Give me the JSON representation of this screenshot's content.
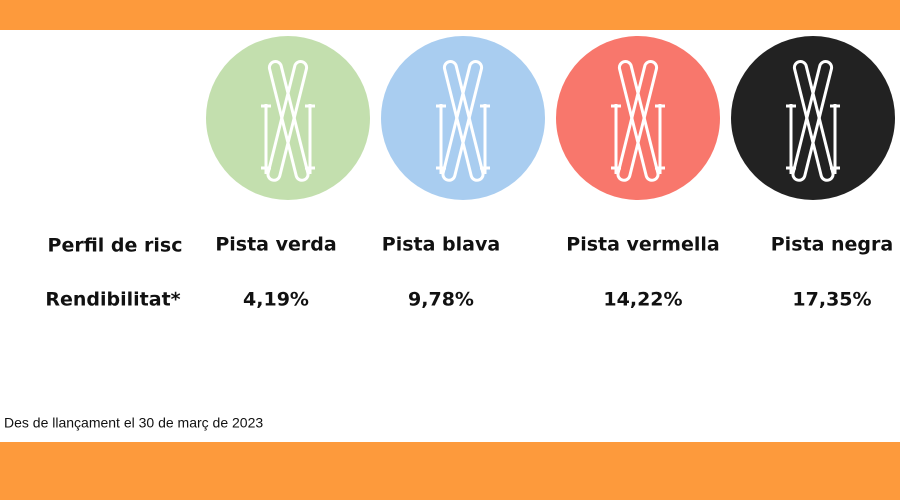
{
  "table": {
    "row_headers": [
      "Perfil de risc",
      "Rendibilitat*"
    ],
    "columns": [
      {
        "label": "Pista verda",
        "value": "4,19%",
        "color": "#c3dfae"
      },
      {
        "label": "Pista blava",
        "value": "9,78%",
        "color": "#a9cdf0"
      },
      {
        "label": "Pista vermella",
        "value": "14,22%",
        "color": "#f8776c"
      },
      {
        "label": "Pista negra",
        "value": "17,35%",
        "color": "#222222"
      }
    ]
  },
  "footnote": "Des de llançament el 30 de març de 2023"
}
